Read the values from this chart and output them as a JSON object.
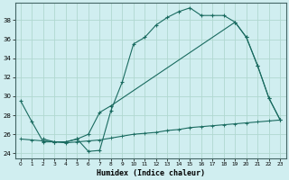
{
  "xlabel": "Humidex (Indice chaleur)",
  "background_color": "#d0eef0",
  "line_color": "#1a6b60",
  "grid_color": "#b0d8d0",
  "xlim": [
    -0.5,
    23.5
  ],
  "ylim": [
    23.5,
    39.8
  ],
  "yticks": [
    24,
    26,
    28,
    30,
    32,
    34,
    36,
    38
  ],
  "xticks": [
    0,
    1,
    2,
    3,
    4,
    5,
    6,
    7,
    8,
    9,
    10,
    11,
    12,
    13,
    14,
    15,
    16,
    17,
    18,
    19,
    20,
    21,
    22,
    23
  ],
  "series": [
    {
      "x": [
        0,
        1,
        2,
        3,
        4,
        5,
        6,
        7,
        8,
        9,
        10,
        11,
        12,
        13,
        14,
        15,
        16,
        17,
        18,
        19,
        20,
        21,
        22,
        23
      ],
      "y": [
        29.5,
        27.3,
        25.2,
        25.2,
        25.2,
        25.5,
        24.2,
        24.3,
        28.5,
        31.5,
        35.5,
        36.2,
        37.5,
        38.3,
        38.9,
        39.3,
        38.5,
        38.5,
        38.5,
        37.8,
        36.2,
        33.2,
        29.8,
        27.5
      ]
    },
    {
      "x": [
        2,
        3,
        4,
        5,
        6,
        7,
        8,
        19,
        20,
        21,
        22,
        23
      ],
      "y": [
        25.5,
        25.2,
        25.2,
        25.5,
        26.0,
        28.3,
        29.0,
        37.8,
        36.2,
        33.2,
        29.8,
        27.5
      ]
    },
    {
      "x": [
        0,
        1,
        2,
        3,
        4,
        5,
        6,
        7,
        8,
        9,
        10,
        11,
        12,
        13,
        14,
        15,
        16,
        17,
        18,
        19,
        20,
        21,
        22,
        23
      ],
      "y": [
        25.5,
        25.4,
        25.3,
        25.2,
        25.1,
        25.2,
        25.3,
        25.4,
        25.6,
        25.8,
        26.0,
        26.1,
        26.2,
        26.4,
        26.5,
        26.7,
        26.8,
        26.9,
        27.0,
        27.1,
        27.2,
        27.3,
        27.4,
        27.5
      ]
    }
  ]
}
